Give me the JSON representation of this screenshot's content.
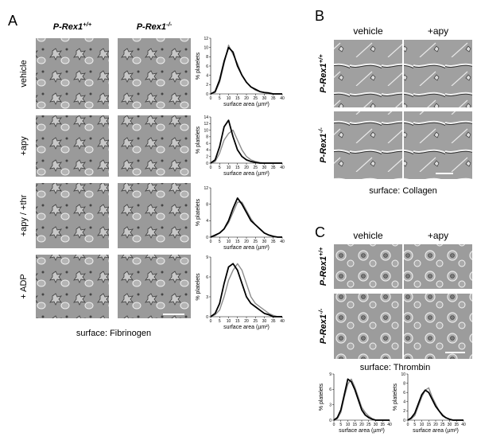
{
  "panels": {
    "A": {
      "label": "A",
      "columns": [
        {
          "gene": "P-Rex1",
          "genotype": "+/+"
        },
        {
          "gene": "P-Rex1",
          "genotype": "-/-"
        }
      ],
      "rows": [
        "vehicle",
        "+apy",
        "+apy / +thr",
        "+ ADP"
      ],
      "surface": "surface: Fibrinogen"
    },
    "B": {
      "label": "B",
      "columns": [
        "vehicle",
        "+apy"
      ],
      "rows": [
        {
          "gene": "P-Rex1",
          "genotype": "+/+"
        },
        {
          "gene": "P-Rex1",
          "genotype": "-/-"
        }
      ],
      "surface": "surface: Collagen"
    },
    "C": {
      "label": "C",
      "columns": [
        "vehicle",
        "+apy"
      ],
      "rows": [
        {
          "gene": "P-Rex1",
          "genotype": "+/+"
        },
        {
          "gene": "P-Rex1",
          "genotype": "-/-"
        }
      ],
      "surface": "surface: Thrombin"
    }
  },
  "chart_data": [
    {
      "type": "line",
      "xlabel": "surface area (µm²)",
      "ylabel": "% platelets",
      "x": [
        0,
        2.5,
        5,
        7.5,
        10,
        12.5,
        15,
        17.5,
        20,
        22.5,
        25,
        27.5,
        30,
        32.5,
        35,
        37.5,
        40
      ],
      "xlim": [
        0,
        40
      ],
      "xticks": [
        0,
        5,
        10,
        15,
        20,
        25,
        30,
        35,
        40
      ],
      "ylim": [
        0,
        12
      ],
      "yticks": [
        0,
        2,
        4,
        6,
        8,
        10,
        12
      ],
      "series": [
        {
          "color": "#000000",
          "values": [
            0,
            0.5,
            3,
            7,
            10,
            9,
            6,
            4,
            2.5,
            1.5,
            1,
            0.5,
            0.3,
            0.2,
            0,
            0,
            0
          ]
        },
        {
          "color": "#8c8c8c",
          "values": [
            0,
            0.3,
            2.5,
            6.5,
            10.5,
            8.5,
            6.5,
            4,
            2.5,
            1.5,
            0.8,
            0.5,
            0.3,
            0,
            0,
            0,
            0
          ]
        }
      ]
    },
    {
      "type": "line",
      "xlabel": "surface area (µm²)",
      "ylabel": "% platelets",
      "x": [
        0,
        2.5,
        5,
        7.5,
        10,
        12.5,
        15,
        17.5,
        20,
        22.5,
        25,
        27.5,
        30,
        32.5,
        35,
        37.5,
        40
      ],
      "xlim": [
        0,
        40
      ],
      "xticks": [
        0,
        5,
        10,
        15,
        20,
        25,
        30,
        35,
        40
      ],
      "ylim": [
        0,
        14
      ],
      "yticks": [
        0,
        2,
        4,
        6,
        8,
        10,
        12,
        14
      ],
      "series": [
        {
          "color": "#000000",
          "values": [
            0,
            1,
            5,
            11,
            13,
            8,
            4,
            2,
            1,
            0.5,
            0.2,
            0,
            0,
            0,
            0,
            0,
            0
          ]
        },
        {
          "color": "#8c8c8c",
          "values": [
            0,
            0.5,
            3,
            7,
            9,
            10,
            7,
            4,
            2,
            1,
            0.5,
            0.2,
            0,
            0,
            0,
            0,
            0
          ]
        }
      ]
    },
    {
      "type": "line",
      "xlabel": "surface area (µm²)",
      "ylabel": "% platelets",
      "x": [
        0,
        2.5,
        5,
        7.5,
        10,
        12.5,
        15,
        17.5,
        20,
        22.5,
        25,
        27.5,
        30,
        32.5,
        35,
        37.5,
        40
      ],
      "xlim": [
        0,
        40
      ],
      "xticks": [
        0,
        5,
        10,
        15,
        20,
        25,
        30,
        35,
        40
      ],
      "ylim": [
        0,
        12
      ],
      "yticks": [
        0,
        4,
        8,
        12
      ],
      "series": [
        {
          "color": "#000000",
          "values": [
            0,
            0.5,
            1,
            2,
            4,
            7,
            9.5,
            8,
            6,
            4,
            3,
            2,
            1,
            0.5,
            0.2,
            0,
            0
          ]
        },
        {
          "color": "#8c8c8c",
          "values": [
            0,
            0.3,
            1,
            2,
            3.5,
            6,
            8.5,
            8.5,
            6.5,
            4.5,
            3,
            2,
            1,
            0.5,
            0.2,
            0,
            0
          ]
        }
      ]
    },
    {
      "type": "line",
      "xlabel": "surface area (µm²)",
      "ylabel": "% platelets",
      "x": [
        0,
        2.5,
        5,
        7.5,
        10,
        12.5,
        15,
        17.5,
        20,
        22.5,
        25,
        27.5,
        30,
        32.5,
        35,
        37.5,
        40
      ],
      "xlim": [
        0,
        40
      ],
      "xticks": [
        0,
        5,
        10,
        15,
        20,
        25,
        30,
        35,
        40
      ],
      "ylim": [
        0,
        9
      ],
      "yticks": [
        0,
        3,
        6,
        9
      ],
      "series": [
        {
          "color": "#000000",
          "values": [
            0,
            0.5,
            2,
            5,
            7.5,
            8,
            7,
            5,
            3,
            2,
            1.5,
            1,
            0.5,
            0.3,
            0,
            0,
            0
          ]
        },
        {
          "color": "#8c8c8c",
          "values": [
            0,
            0.3,
            1,
            3,
            5.5,
            7,
            8,
            7,
            5,
            3,
            2,
            1.5,
            1,
            0.5,
            0.2,
            0,
            0
          ]
        }
      ]
    },
    {
      "type": "line",
      "xlabel": "surface area (µm²)",
      "ylabel": "% platelets",
      "x": [
        0,
        2.5,
        5,
        7.5,
        10,
        12.5,
        15,
        17.5,
        20,
        22.5,
        25,
        27.5,
        30,
        32.5,
        35,
        37.5,
        40
      ],
      "xlim": [
        0,
        40
      ],
      "xticks": [
        0,
        5,
        10,
        15,
        20,
        25,
        30,
        35,
        40
      ],
      "ylim": [
        0,
        9
      ],
      "yticks": [
        0,
        3,
        6,
        9
      ],
      "series": [
        {
          "color": "#000000",
          "values": [
            0,
            0.5,
            2,
            5,
            8,
            7.5,
            6,
            4,
            2,
            1,
            0.5,
            0.2,
            0,
            0,
            0,
            0,
            0
          ]
        },
        {
          "color": "#8c8c8c",
          "values": [
            0,
            0.3,
            1.5,
            4.5,
            7,
            8,
            6.5,
            4.5,
            2.5,
            1.5,
            0.8,
            0.3,
            0,
            0,
            0,
            0,
            0
          ]
        }
      ]
    },
    {
      "type": "line",
      "xlabel": "surface area (µm²)",
      "ylabel": "% platelets",
      "x": [
        0,
        2.5,
        5,
        7.5,
        10,
        12.5,
        15,
        17.5,
        20,
        22.5,
        25,
        27.5,
        30,
        32.5,
        35,
        37.5,
        40
      ],
      "xlim": [
        0,
        40
      ],
      "xticks": [
        0,
        5,
        10,
        15,
        20,
        25,
        30,
        35,
        40
      ],
      "ylim": [
        0,
        10
      ],
      "yticks": [
        0,
        2,
        4,
        6,
        8,
        10
      ],
      "series": [
        {
          "color": "#000000",
          "values": [
            0,
            0.5,
            1.5,
            3.5,
            5.5,
            6.5,
            6,
            4.5,
            3,
            2,
            1,
            0.5,
            0.2,
            0,
            0,
            0,
            0
          ]
        },
        {
          "color": "#8c8c8c",
          "values": [
            0,
            0.3,
            1,
            3,
            5,
            6.5,
            7,
            5,
            3.5,
            2,
            1.2,
            0.5,
            0.2,
            0,
            0,
            0,
            0
          ]
        }
      ]
    }
  ]
}
